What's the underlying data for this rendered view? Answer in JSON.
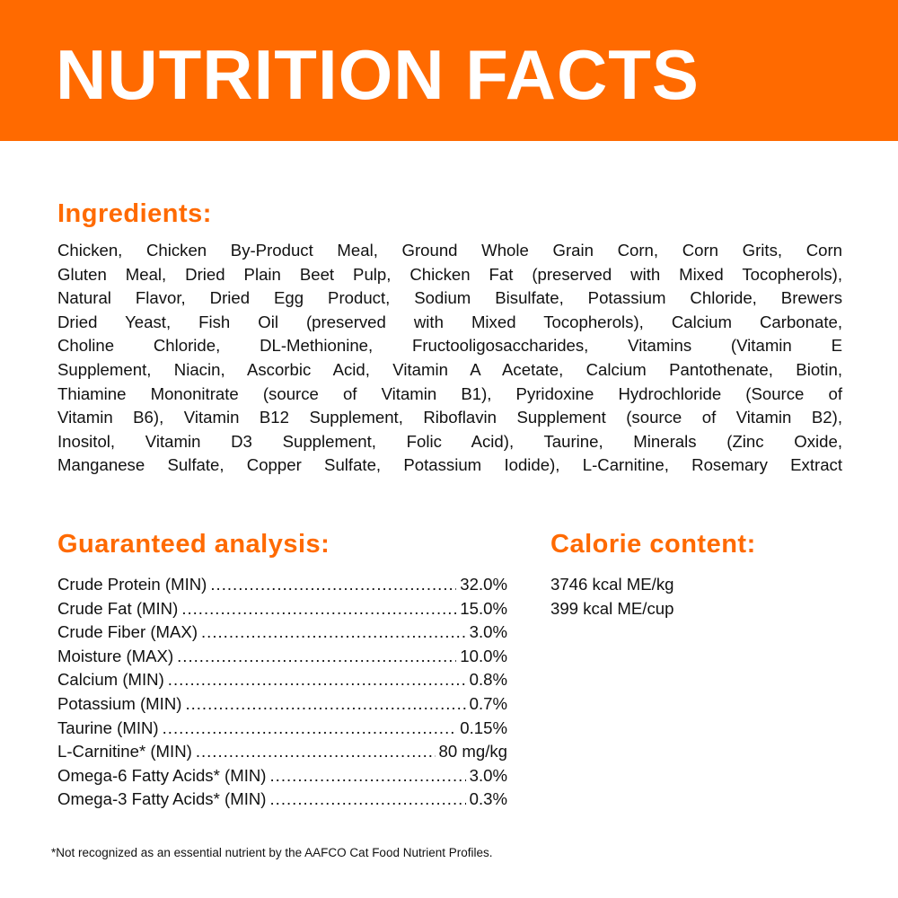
{
  "colors": {
    "accent": "#ff6a00"
  },
  "header": {
    "title": "NUTRITION FACTS"
  },
  "ingredients": {
    "heading": "Ingredients:",
    "lines": [
      "Chicken, Chicken By-Product Meal, Ground Whole Grain Corn, Corn Grits, Corn",
      "Gluten Meal, Dried Plain Beet Pulp, Chicken Fat (preserved with Mixed Tocopherols),",
      "Natural Flavor, Dried Egg Product, Sodium Bisulfate, Potassium Chloride, Brewers",
      "Dried Yeast, Fish Oil (preserved with Mixed Tocopherols), Calcium Carbonate,",
      "Choline Chloride, DL-Methionine, Fructooligosaccharides, Vitamins (Vitamin E",
      "Supplement, Niacin, Ascorbic Acid, Vitamin A Acetate, Calcium Pantothenate, Biotin,",
      "Thiamine Mononitrate (source of Vitamin B1), Pyridoxine Hydrochloride (Source of",
      "Vitamin B6), Vitamin B12 Supplement, Riboflavin Supplement (source of Vitamin B2),",
      "Inositol, Vitamin D3 Supplement, Folic Acid), Taurine, Minerals (Zinc Oxide,",
      "Manganese Sulfate, Copper Sulfate, Potassium Iodide), L-Carnitine, Rosemary Extract"
    ]
  },
  "analysis": {
    "heading": "Guaranteed analysis:",
    "rows": [
      {
        "label": "Crude Protein (MIN)",
        "value": "32.0%"
      },
      {
        "label": "Crude Fat (MIN)",
        "value": "15.0%"
      },
      {
        "label": "Crude Fiber (MAX)",
        "value": "3.0%"
      },
      {
        "label": "Moisture (MAX)",
        "value": "10.0%"
      },
      {
        "label": "Calcium (MIN)",
        "value": "0.8%"
      },
      {
        "label": "Potassium (MIN)",
        "value": "0.7%"
      },
      {
        "label": "Taurine (MIN)",
        "value": "0.15%"
      },
      {
        "label": "L-Carnitine*  (MIN)",
        "value": "80 mg/kg"
      },
      {
        "label": "Omega-6 Fatty Acids*  (MIN)",
        "value": "3.0%"
      },
      {
        "label": "Omega-3 Fatty Acids*  (MIN)",
        "value": "0.3%"
      }
    ]
  },
  "calorie": {
    "heading": "Calorie content:",
    "lines": [
      "3746 kcal ME/kg",
      "399 kcal ME/cup"
    ]
  },
  "footnote": "*Not recognized as an essential nutrient by the AAFCO Cat Food Nutrient Profiles."
}
